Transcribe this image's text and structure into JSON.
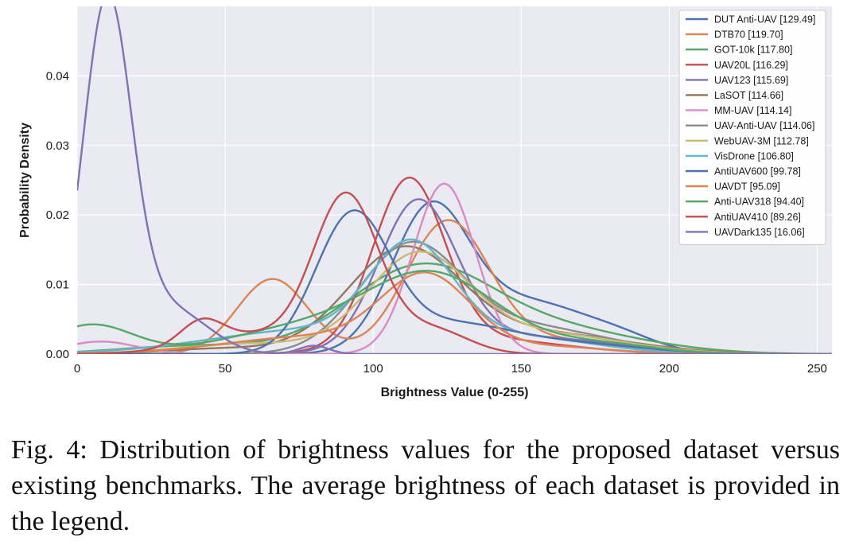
{
  "chart_data": {
    "type": "line",
    "title": "",
    "xlabel": "Brightness Value (0-255)",
    "ylabel": "Probability Density",
    "xlim": [
      0,
      255
    ],
    "ylim": [
      0,
      0.05
    ],
    "xticks": [
      0,
      50,
      100,
      150,
      200,
      250
    ],
    "xtick_labels": [
      "0",
      "50",
      "100",
      "150",
      "200",
      "250"
    ],
    "yticks": [
      0,
      0.01,
      0.02,
      0.03,
      0.04
    ],
    "ytick_labels": [
      "0.00",
      "0.01",
      "0.02",
      "0.03",
      "0.04"
    ],
    "grid": true,
    "legend_position": "top-right",
    "series": [
      {
        "name": "DUT Anti-UAV [129.49]",
        "color": "#4c72b0",
        "components": [
          [
            0.0194,
            119,
            13
          ],
          [
            0.0075,
            152,
            22
          ],
          [
            0.0012,
            185,
            12
          ]
        ]
      },
      {
        "name": "DTB70 [119.70]",
        "color": "#dd8452",
        "components": [
          [
            0.0108,
            66,
            12
          ],
          [
            0.0185,
            125,
            14
          ],
          [
            0.002,
            160,
            25
          ]
        ]
      },
      {
        "name": "GOT-10k [117.80]",
        "color": "#55a868",
        "components": [
          [
            0.0118,
            115,
            24
          ],
          [
            0.0035,
            160,
            30
          ],
          [
            0.0012,
            40,
            25
          ]
        ]
      },
      {
        "name": "UAV20L [116.29]",
        "color": "#c44e52",
        "components": [
          [
            0.0238,
            112,
            12
          ],
          [
            0.0022,
            135,
            28
          ]
        ]
      },
      {
        "name": "UAV123 [115.69]",
        "color": "#8172b3",
        "components": [
          [
            0.021,
            115,
            13
          ],
          [
            0.0025,
            150,
            30
          ]
        ]
      },
      {
        "name": "LaSOT [114.66]",
        "color": "#937860",
        "components": [
          [
            0.0145,
            110,
            19
          ],
          [
            0.003,
            155,
            30
          ],
          [
            0.0008,
            50,
            20
          ]
        ]
      },
      {
        "name": "MM-UAV [114.14]",
        "color": "#da8bc3",
        "components": [
          [
            0.0245,
            124,
            10.5
          ],
          [
            0.0018,
            8,
            12
          ]
        ]
      },
      {
        "name": "UAV-Anti-UAV [114.06]",
        "color": "#8c8c8c",
        "components": [
          [
            0.0145,
            112,
            17
          ],
          [
            0.004,
            150,
            28
          ]
        ]
      },
      {
        "name": "WebUAV-3M [112.78]",
        "color": "#ccb974",
        "components": [
          [
            0.0135,
            115,
            17
          ],
          [
            0.003,
            155,
            28
          ],
          [
            0.0015,
            60,
            25
          ]
        ]
      },
      {
        "name": "VisDrone [106.80]",
        "color": "#64b5cd",
        "components": [
          [
            0.0135,
            113,
            14
          ],
          [
            0.0035,
            80,
            35
          ],
          [
            0.0022,
            150,
            25
          ]
        ]
      },
      {
        "name": "AntiUAV600 [99.78]",
        "color": "#4c72b0",
        "components": [
          [
            0.0195,
            93,
            12.5
          ],
          [
            0.004,
            125,
            20
          ],
          [
            0.0015,
            165,
            25
          ]
        ]
      },
      {
        "name": "UAVDT [95.09]",
        "color": "#dd8452",
        "components": [
          [
            0.0105,
            118,
            15
          ],
          [
            0.0025,
            80,
            30
          ],
          [
            0.001,
            160,
            20
          ]
        ]
      },
      {
        "name": "Anti-UAV318 [94.40]",
        "color": "#55a868",
        "components": [
          [
            0.0112,
            120,
            22
          ],
          [
            0.0042,
            5,
            14
          ],
          [
            0.0035,
            75,
            25
          ],
          [
            0.0015,
            175,
            20
          ]
        ]
      },
      {
        "name": "AntiUAV410 [89.26]",
        "color": "#c44e52",
        "components": [
          [
            0.0222,
            91,
            11
          ],
          [
            0.0032,
            42,
            7
          ],
          [
            0.0028,
            60,
            20
          ],
          [
            0.0035,
            120,
            12
          ]
        ]
      },
      {
        "name": "UAVDark135 [16.06]",
        "color": "#8172b3",
        "components": [
          [
            0.0468,
            10,
            8
          ],
          [
            0.0072,
            22,
            14
          ],
          [
            0.002,
            40,
            10
          ],
          [
            0.0012,
            80,
            5
          ]
        ]
      }
    ]
  },
  "caption": "Fig. 4: Distribution of brightness values for the proposed dataset versus existing benchmarks. The average brightness of each dataset is provided in the legend."
}
